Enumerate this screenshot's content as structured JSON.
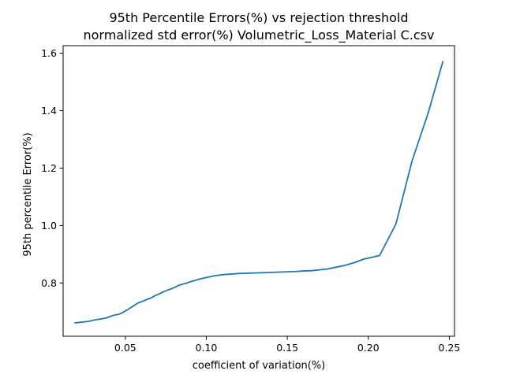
{
  "chart_data": {
    "type": "line",
    "title_line1": "95th Percentile Errors(%) vs rejection threshold",
    "title_line2": "normalized std error(%) Volumetric_Loss_Material C.csv",
    "xlabel": "coefficient of variation(%)",
    "ylabel": "95th percentile Error(%)",
    "xlim": [
      0.0116,
      0.2532
    ],
    "ylim": [
      0.6145,
      1.6265
    ],
    "xticks": [
      {
        "value": 0.05,
        "label": "0.05"
      },
      {
        "value": 0.1,
        "label": "0.10"
      },
      {
        "value": 0.15,
        "label": "0.15"
      },
      {
        "value": 0.2,
        "label": "0.20"
      },
      {
        "value": 0.25,
        "label": "0.25"
      }
    ],
    "yticks": [
      {
        "value": 0.8,
        "label": "0.8"
      },
      {
        "value": 1.0,
        "label": "1.0"
      },
      {
        "value": 1.2,
        "label": "1.2"
      },
      {
        "value": 1.4,
        "label": "1.4"
      },
      {
        "value": 1.6,
        "label": "1.6"
      }
    ],
    "grid": false,
    "legend": false,
    "series": [
      {
        "color": "#1f77b4",
        "x": [
          0.019,
          0.022,
          0.025,
          0.028,
          0.03,
          0.033,
          0.036,
          0.038,
          0.041,
          0.043,
          0.046,
          0.048,
          0.051,
          0.053,
          0.056,
          0.058,
          0.061,
          0.063,
          0.066,
          0.068,
          0.071,
          0.073,
          0.076,
          0.078,
          0.081,
          0.083,
          0.086,
          0.088,
          0.091,
          0.093,
          0.096,
          0.1,
          0.105,
          0.11,
          0.115,
          0.12,
          0.125,
          0.13,
          0.135,
          0.14,
          0.145,
          0.15,
          0.155,
          0.16,
          0.165,
          0.17,
          0.175,
          0.18,
          0.186,
          0.192,
          0.197,
          0.202,
          0.207,
          0.217,
          0.227,
          0.237,
          0.246
        ],
        "y": [
          0.661,
          0.663,
          0.665,
          0.667,
          0.67,
          0.673,
          0.676,
          0.678,
          0.684,
          0.688,
          0.691,
          0.696,
          0.706,
          0.713,
          0.724,
          0.731,
          0.737,
          0.742,
          0.748,
          0.755,
          0.762,
          0.768,
          0.775,
          0.779,
          0.786,
          0.792,
          0.797,
          0.8,
          0.806,
          0.809,
          0.814,
          0.819,
          0.825,
          0.829,
          0.831,
          0.833,
          0.834,
          0.835,
          0.836,
          0.837,
          0.838,
          0.839,
          0.84,
          0.842,
          0.843,
          0.846,
          0.849,
          0.855,
          0.862,
          0.872,
          0.883,
          0.889,
          0.896,
          1.005,
          1.225,
          1.393,
          1.571
        ]
      }
    ]
  }
}
